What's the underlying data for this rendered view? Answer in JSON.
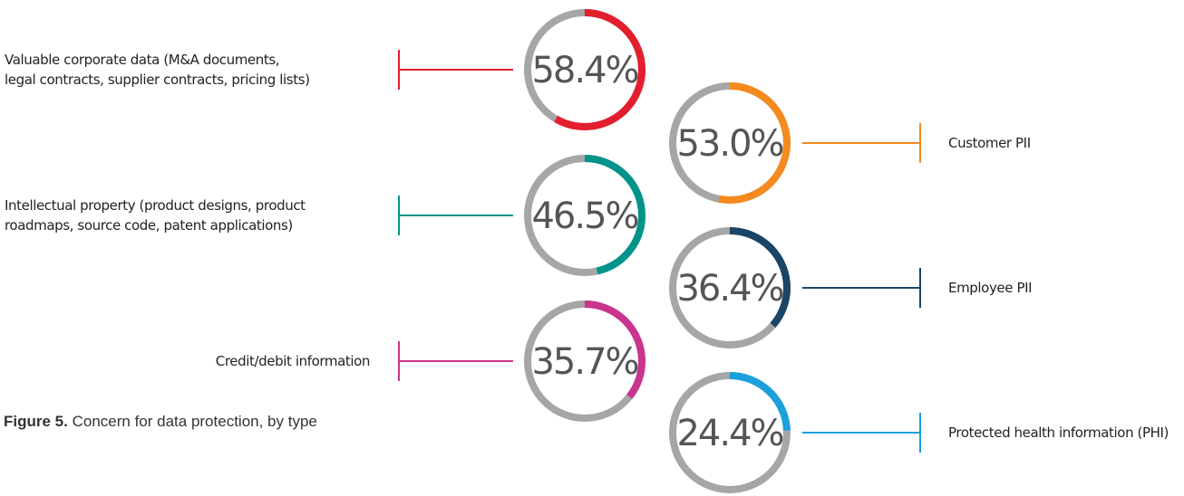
{
  "chart_data": {
    "type": "donut",
    "figure_label": "Figure 5.",
    "title": "Concern for data protection, by type",
    "categories": [
      "Valuable corporate data (M&A documents,\nlegal contracts, supplier contracts, pricing lists)",
      "Customer PII",
      "Intellectual property (product designs, product\nroadmaps, source code, patent applications)",
      "Employee PII",
      "Credit/debit information",
      "Protected health information (PHI)"
    ],
    "values": [
      58.4,
      53.0,
      46.5,
      36.4,
      35.7,
      24.4
    ],
    "value_labels": [
      "58.4%",
      "53.0%",
      "46.5%",
      "36.4%",
      "35.7%",
      "24.4%"
    ],
    "colors": [
      "#e31e2d",
      "#f58a1f",
      "#00938a",
      "#1b4566",
      "#c9348f",
      "#1ba0dc"
    ],
    "vlim": [
      0,
      100
    ]
  }
}
